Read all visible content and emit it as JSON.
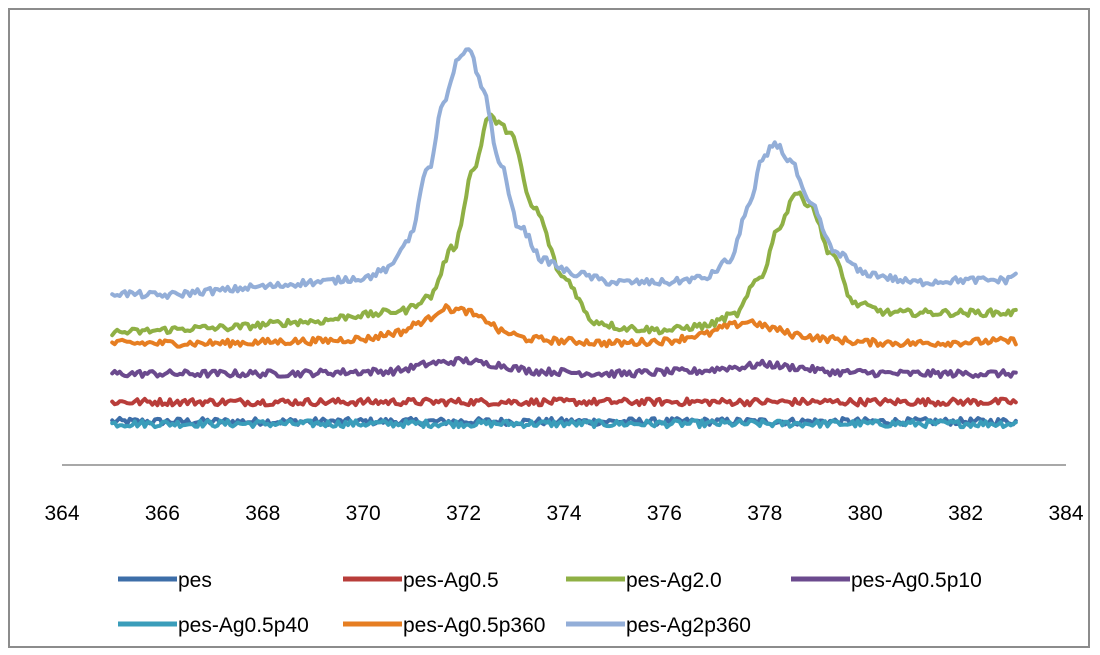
{
  "chart_data": {
    "type": "line",
    "title": "",
    "xlabel": "",
    "ylabel": "",
    "xlim": [
      364,
      384
    ],
    "xticks": [
      364,
      366,
      368,
      370,
      372,
      374,
      376,
      378,
      380,
      382,
      384
    ],
    "ylim": [
      0,
      1
    ],
    "y_axis_visible": false,
    "grid": false,
    "legend_position": "bottom",
    "series": [
      {
        "name": "pes",
        "color": "#3d6ea8",
        "x": [
          365,
          383
        ],
        "y": [
          0.1,
          0.1
        ]
      },
      {
        "name": "pes-Ag0.5",
        "color": "#b83d3a",
        "x": [
          365,
          383
        ],
        "y": [
          0.145,
          0.145
        ]
      },
      {
        "name": "pes-Ag2.0",
        "color": "#8fb045",
        "x": [
          365,
          367,
          369,
          370,
          370.8,
          371.3,
          371.8,
          372.2,
          372.5,
          372.9,
          373.4,
          374,
          374.6,
          375.2,
          376,
          376.8,
          377.4,
          377.9,
          378.3,
          378.6,
          378.9,
          379.3,
          379.8,
          380.5,
          382,
          383
        ],
        "y": [
          0.305,
          0.315,
          0.33,
          0.345,
          0.355,
          0.385,
          0.5,
          0.68,
          0.8,
          0.77,
          0.59,
          0.43,
          0.33,
          0.315,
          0.31,
          0.32,
          0.345,
          0.43,
          0.55,
          0.625,
          0.6,
          0.49,
          0.37,
          0.35,
          0.35,
          0.35
        ]
      },
      {
        "name": "pes-Ag0.5p10",
        "color": "#6b4a8e",
        "x": [
          365,
          368,
          370.5,
          371.5,
          372,
          372.5,
          373.5,
          375,
          376.5,
          377.5,
          378,
          378.5,
          379.5,
          381,
          383
        ],
        "y": [
          0.21,
          0.21,
          0.215,
          0.235,
          0.24,
          0.232,
          0.215,
          0.21,
          0.215,
          0.225,
          0.232,
          0.225,
          0.213,
          0.21,
          0.21
        ]
      },
      {
        "name": "pes-Ag0.5p40",
        "color": "#3a9dba",
        "x": [
          365,
          383
        ],
        "y": [
          0.095,
          0.095
        ]
      },
      {
        "name": "pes-Ag0.5p360",
        "color": "#e67e22",
        "x": [
          365,
          367,
          369,
          370,
          370.7,
          371.2,
          371.6,
          372,
          372.4,
          372.8,
          373.3,
          374,
          375,
          376,
          376.8,
          377.3,
          377.7,
          378.1,
          378.6,
          379.2,
          380,
          381,
          383
        ],
        "y": [
          0.28,
          0.28,
          0.285,
          0.29,
          0.305,
          0.33,
          0.36,
          0.355,
          0.335,
          0.305,
          0.29,
          0.285,
          0.28,
          0.285,
          0.3,
          0.32,
          0.33,
          0.315,
          0.3,
          0.29,
          0.282,
          0.28,
          0.285
        ]
      },
      {
        "name": "pes-Ag2p360",
        "color": "#93aed8",
        "x": [
          365,
          366,
          367,
          368,
          369,
          370,
          370.5,
          370.9,
          371.3,
          371.6,
          371.9,
          372.1,
          372.4,
          372.7,
          373.1,
          373.6,
          374.2,
          375,
          376,
          376.8,
          377.3,
          377.7,
          377.95,
          378.2,
          378.5,
          378.9,
          379.4,
          380,
          381,
          382,
          382.8,
          383
        ],
        "y": [
          0.395,
          0.39,
          0.4,
          0.41,
          0.42,
          0.43,
          0.45,
          0.52,
          0.68,
          0.83,
          0.93,
          0.96,
          0.86,
          0.7,
          0.55,
          0.47,
          0.44,
          0.42,
          0.42,
          0.43,
          0.47,
          0.6,
          0.7,
          0.74,
          0.7,
          0.6,
          0.49,
          0.44,
          0.42,
          0.425,
          0.425,
          0.44
        ]
      }
    ],
    "legend_entries": [
      "pes",
      "pes-Ag0.5",
      "pes-Ag2.0",
      "pes-Ag0.5p10",
      "pes-Ag0.5p40",
      "pes-Ag0.5p360",
      "pes-Ag2p360"
    ]
  }
}
